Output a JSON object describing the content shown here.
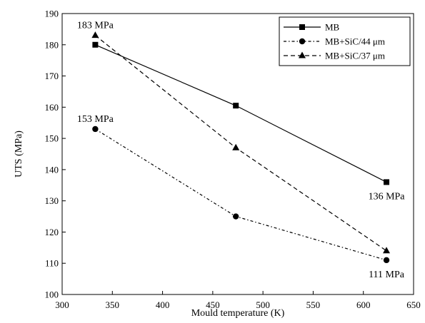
{
  "chart_data": {
    "type": "line",
    "xlabel": "Mould temperature (K)",
    "ylabel": "UTS (MPa)",
    "xlim": [
      300,
      650
    ],
    "ylim": [
      100,
      190
    ],
    "xticks": [
      300,
      350,
      400,
      450,
      500,
      550,
      600,
      650
    ],
    "yticks": [
      100,
      110,
      120,
      130,
      140,
      150,
      160,
      170,
      180,
      190
    ],
    "grid": false,
    "legend_position": "top-right",
    "series": [
      {
        "name": "MB",
        "marker": "square",
        "dash": "solid",
        "x": [
          333,
          473,
          623
        ],
        "y": [
          180,
          160.5,
          136
        ]
      },
      {
        "name": "MB+SiC/44 μm",
        "marker": "circle",
        "dash": "dashdot",
        "x": [
          333,
          473,
          623
        ],
        "y": [
          153,
          125,
          111
        ]
      },
      {
        "name": "MB+SiC/37 μm",
        "marker": "triangle",
        "dash": "dashed",
        "x": [
          333,
          473,
          623
        ],
        "y": [
          183,
          147,
          114
        ]
      }
    ],
    "annotations": [
      {
        "text": "183 MPa",
        "x": 333,
        "y": 183,
        "anchor": "above"
      },
      {
        "text": "153 MPa",
        "x": 333,
        "y": 153,
        "anchor": "above"
      },
      {
        "text": "136 MPa",
        "x": 623,
        "y": 136,
        "anchor": "below"
      },
      {
        "text": "111 MPa",
        "x": 623,
        "y": 111,
        "anchor": "below"
      }
    ]
  }
}
